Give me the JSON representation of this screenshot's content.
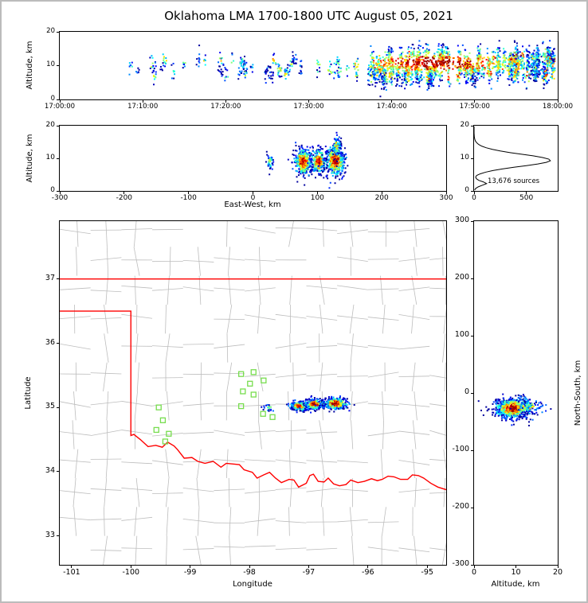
{
  "title": "Oklahoma LMA 1700-1800 UTC August 05, 2021",
  "colors": {
    "state_border": "#ff0000",
    "county_lines": "#bdbdbd",
    "station_marker": "#77dd4e",
    "histogram_line": "#000000",
    "frame": "#000000",
    "colormap": "jet"
  },
  "chart_data": [
    {
      "id": "time_height",
      "type": "scatter",
      "description": "VHF source altitude vs time, colored by point density",
      "xlabel": "",
      "ylabel": "Altitude, km",
      "xlim": [
        0,
        3600
      ],
      "ylim": [
        0,
        20
      ],
      "xticks": [
        {
          "v": 0,
          "label": "17:00:00"
        },
        {
          "v": 600,
          "label": "17:10:00"
        },
        {
          "v": 1200,
          "label": "17:20:00"
        },
        {
          "v": 1800,
          "label": "17:30:00"
        },
        {
          "v": 2400,
          "label": "17:40:00"
        },
        {
          "v": 3000,
          "label": "17:50:00"
        },
        {
          "v": 3600,
          "label": "18:00:00"
        }
      ],
      "yticks": [
        {
          "v": 0,
          "label": "0"
        },
        {
          "v": 10,
          "label": "10"
        },
        {
          "v": 20,
          "label": "20"
        }
      ],
      "phases": [
        {
          "t0": 480,
          "t1": 2150,
          "streaks": 48,
          "pts_min": 3,
          "pts_max": 12,
          "alt_min": 7.2,
          "alt_max": 11.8,
          "alt_sigma": 1.2,
          "warm_max": 0.6
        },
        {
          "t0": 2230,
          "t1": 3600,
          "streaks": 150,
          "pts_min": 6,
          "pts_max": 26,
          "alt_min": 6.5,
          "alt_max": 13.2,
          "alt_sigma": 1.7,
          "warm_max": 0.85
        }
      ],
      "density_core": {
        "t": 2720,
        "t_sigma": 430,
        "alt": 10.8,
        "alt_sigma": 2.3
      }
    },
    {
      "id": "ew_height",
      "type": "scatter",
      "description": "Altitude vs east-west distance, colored by point density",
      "xlabel": "East-West, km",
      "ylabel": "Altitude, km",
      "xlim": [
        -300,
        300
      ],
      "ylim": [
        0,
        20
      ],
      "xticks": [
        {
          "v": -300,
          "label": "-300"
        },
        {
          "v": -200,
          "label": "-200"
        },
        {
          "v": -100,
          "label": "-100"
        },
        {
          "v": 0,
          "label": "0"
        },
        {
          "v": 100,
          "label": "100"
        },
        {
          "v": 200,
          "label": "200"
        },
        {
          "v": 300,
          "label": "300"
        }
      ],
      "yticks": [
        {
          "v": 0,
          "label": "0"
        },
        {
          "v": 10,
          "label": "10"
        },
        {
          "v": 20,
          "label": "20"
        }
      ],
      "clusters": [
        {
          "cx": 27,
          "cy": 9.0,
          "sx": 2.5,
          "sy": 1.1,
          "n": 45,
          "w": 0.6
        },
        {
          "cx": 78,
          "cy": 9.0,
          "sx": 7.0,
          "sy": 2.0,
          "n": 430,
          "w": 1.0
        },
        {
          "cx": 102,
          "cy": 9.2,
          "sx": 5.5,
          "sy": 2.0,
          "n": 270,
          "w": 0.95
        },
        {
          "cx": 128,
          "cy": 9.3,
          "sx": 7.5,
          "sy": 2.4,
          "n": 480,
          "w": 1.0
        },
        {
          "cx": 130,
          "cy": 13.8,
          "sx": 3.0,
          "sy": 1.7,
          "n": 90,
          "w": 0.6
        }
      ]
    },
    {
      "id": "alt_histogram",
      "type": "line",
      "description": "Source count vs altitude",
      "xlabel": "",
      "ylabel": "",
      "xlim": [
        0,
        800
      ],
      "ylim": [
        0,
        20
      ],
      "xticks": [
        {
          "v": 0,
          "label": "0"
        },
        {
          "v": 500,
          "label": "500"
        }
      ],
      "yticks": [
        {
          "v": 0,
          "label": "0"
        },
        {
          "v": 10,
          "label": "10"
        },
        {
          "v": 20,
          "label": "20"
        }
      ],
      "annotation": "13,676 sources",
      "altitudes": [
        0.25,
        0.75,
        1.25,
        1.75,
        2.25,
        2.75,
        3.25,
        3.75,
        4.25,
        4.75,
        5.25,
        5.75,
        6.25,
        6.75,
        7.25,
        7.75,
        8.25,
        8.75,
        9.25,
        9.75,
        10.25,
        10.75,
        11.25,
        11.75,
        12.25,
        12.75,
        13.25,
        13.75,
        14.25,
        14.75,
        15.25,
        15.75,
        16.25,
        16.75,
        17.25,
        17.75,
        18.25,
        18.75,
        19.25,
        19.75
      ],
      "counts": [
        5,
        15,
        40,
        80,
        120,
        90,
        45,
        22,
        15,
        25,
        60,
        110,
        180,
        270,
        380,
        500,
        610,
        690,
        730,
        715,
        655,
        565,
        455,
        345,
        250,
        175,
        115,
        72,
        44,
        26,
        14,
        8,
        4,
        2,
        1,
        0,
        0,
        0,
        0,
        0
      ]
    },
    {
      "id": "map",
      "type": "scatter",
      "description": "Plan view: Oklahoma state border (red), county lines (gray), LMA stations (green squares), sources colored by density",
      "xlabel": "Longitude",
      "ylabel": "Latitude",
      "xlim": [
        -101.2,
        -94.68
      ],
      "ylim": [
        32.55,
        37.9
      ],
      "xticks": [
        {
          "v": -101,
          "label": "-101"
        },
        {
          "v": -100,
          "label": "-100"
        },
        {
          "v": -99,
          "label": "-99"
        },
        {
          "v": -98,
          "label": "-98"
        },
        {
          "v": -97,
          "label": "-97"
        },
        {
          "v": -96,
          "label": "-96"
        },
        {
          "v": -95,
          "label": "-95"
        }
      ],
      "yticks": [
        {
          "v": 33,
          "label": "33"
        },
        {
          "v": 34,
          "label": "34"
        },
        {
          "v": 35,
          "label": "35"
        },
        {
          "v": 36,
          "label": "36"
        },
        {
          "v": 37,
          "label": "37"
        }
      ],
      "county_grid": {
        "lon_step": 0.52,
        "lat_step": 0.45,
        "jitter": 0.05
      },
      "state_border": [
        [
          [
            -101.2,
            37.0
          ],
          [
            -94.68,
            37.0
          ]
        ],
        [
          [
            -101.2,
            36.5
          ],
          [
            -100.0,
            36.5
          ],
          [
            -100.0,
            34.563
          ],
          [
            -99.95,
            34.58
          ],
          [
            -99.84,
            34.5
          ],
          [
            -99.71,
            34.39
          ],
          [
            -99.58,
            34.41
          ],
          [
            -99.47,
            34.38
          ],
          [
            -99.38,
            34.46
          ],
          [
            -99.27,
            34.4
          ],
          [
            -99.21,
            34.34
          ],
          [
            -99.1,
            34.21
          ],
          [
            -98.97,
            34.22
          ],
          [
            -98.87,
            34.16
          ],
          [
            -98.75,
            34.13
          ],
          [
            -98.61,
            34.16
          ],
          [
            -98.48,
            34.07
          ],
          [
            -98.39,
            34.13
          ],
          [
            -98.17,
            34.11
          ],
          [
            -98.09,
            34.03
          ],
          [
            -97.95,
            33.99
          ],
          [
            -97.87,
            33.9
          ],
          [
            -97.76,
            33.95
          ],
          [
            -97.66,
            33.99
          ],
          [
            -97.56,
            33.9
          ],
          [
            -97.46,
            33.83
          ],
          [
            -97.33,
            33.88
          ],
          [
            -97.25,
            33.87
          ],
          [
            -97.17,
            33.76
          ],
          [
            -97.04,
            33.82
          ],
          [
            -96.98,
            33.94
          ],
          [
            -96.92,
            33.96
          ],
          [
            -96.84,
            33.85
          ],
          [
            -96.74,
            33.84
          ],
          [
            -96.67,
            33.9
          ],
          [
            -96.58,
            33.81
          ],
          [
            -96.48,
            33.78
          ],
          [
            -96.37,
            33.8
          ],
          [
            -96.29,
            33.87
          ],
          [
            -96.17,
            33.83
          ],
          [
            -96.06,
            33.85
          ],
          [
            -95.94,
            33.89
          ],
          [
            -95.84,
            33.86
          ],
          [
            -95.76,
            33.88
          ],
          [
            -95.66,
            33.93
          ],
          [
            -95.56,
            33.92
          ],
          [
            -95.45,
            33.88
          ],
          [
            -95.33,
            33.88
          ],
          [
            -95.25,
            33.95
          ],
          [
            -95.15,
            33.94
          ],
          [
            -95.06,
            33.9
          ],
          [
            -94.94,
            33.82
          ],
          [
            -94.82,
            33.76
          ],
          [
            -94.68,
            33.72
          ]
        ]
      ],
      "stations": [
        [
          -98.14,
          35.52
        ],
        [
          -97.93,
          35.55
        ],
        [
          -97.76,
          35.42
        ],
        [
          -98.11,
          35.25
        ],
        [
          -97.99,
          35.37
        ],
        [
          -97.93,
          35.2
        ],
        [
          -98.14,
          35.02
        ],
        [
          -97.77,
          34.9
        ],
        [
          -97.61,
          34.85
        ],
        [
          -99.53,
          35.0
        ],
        [
          -99.46,
          34.8
        ],
        [
          -99.57,
          34.65
        ],
        [
          -99.36,
          34.59
        ],
        [
          -99.42,
          34.47
        ]
      ],
      "clusters": [
        {
          "cx": -97.68,
          "cy": 35.0,
          "sx": 0.05,
          "sy": 0.03,
          "n": 20,
          "w": 0.45
        },
        {
          "cx": -97.16,
          "cy": 35.02,
          "sx": 0.075,
          "sy": 0.035,
          "n": 300,
          "w": 1.0
        },
        {
          "cx": -96.9,
          "cy": 35.05,
          "sx": 0.075,
          "sy": 0.04,
          "n": 300,
          "w": 1.0
        },
        {
          "cx": -96.55,
          "cy": 35.06,
          "sx": 0.1,
          "sy": 0.045,
          "n": 370,
          "w": 1.0
        }
      ]
    },
    {
      "id": "ns_height",
      "type": "scatter",
      "description": "North-south distance vs altitude, colored by point density",
      "xlabel": "Altitude, km",
      "ylabel": "North-South, km",
      "xlim": [
        0,
        20
      ],
      "ylim": [
        -300,
        300
      ],
      "xticks": [
        {
          "v": 0,
          "label": "0"
        },
        {
          "v": 10,
          "label": "10"
        },
        {
          "v": 20,
          "label": "20"
        }
      ],
      "yticks": [
        {
          "v": 300,
          "label": "300"
        },
        {
          "v": 200,
          "label": "200"
        },
        {
          "v": 100,
          "label": "100"
        },
        {
          "v": 0,
          "label": "0"
        },
        {
          "v": -100,
          "label": "-100"
        },
        {
          "v": -200,
          "label": "-200"
        },
        {
          "v": -300,
          "label": "-300"
        }
      ],
      "clusters": [
        {
          "cx": 9.3,
          "cy": -27,
          "sx": 2.2,
          "sy": 9.0,
          "n": 720,
          "w": 1.0
        },
        {
          "cx": 13.8,
          "cy": -25,
          "sx": 1.7,
          "sy": 6.0,
          "n": 80,
          "w": 0.55
        }
      ]
    }
  ]
}
